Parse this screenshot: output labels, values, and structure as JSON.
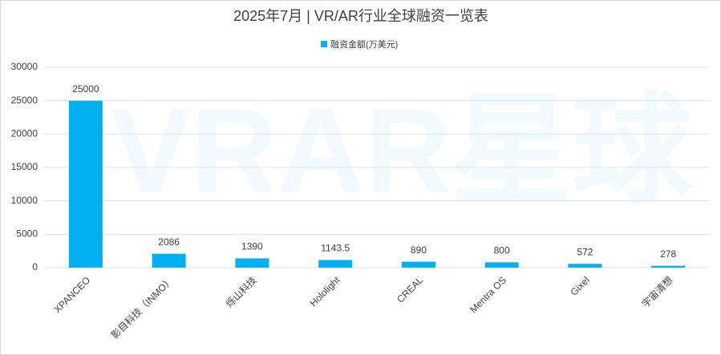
{
  "chart_data": {
    "type": "bar",
    "title": "2025年7月 | VR/AR行业全球融资一览表",
    "watermark": "VRAR星球",
    "categories": [
      "XPANCEO",
      "影目科技（INMO）",
      "烁山科技",
      "Hololight",
      "CREAL",
      "Mentra OS",
      "Gixel",
      "宇宙清想"
    ],
    "series": [
      {
        "name": "融资金额(万美元)",
        "color": "#00b0f0",
        "values": [
          25000,
          2086,
          1390,
          1143.5,
          890,
          800,
          572,
          278
        ]
      }
    ],
    "ylim": [
      0,
      30000
    ],
    "yticks": [
      0,
      5000,
      10000,
      15000,
      20000,
      25000,
      30000
    ],
    "grid": true,
    "legend": "top"
  }
}
